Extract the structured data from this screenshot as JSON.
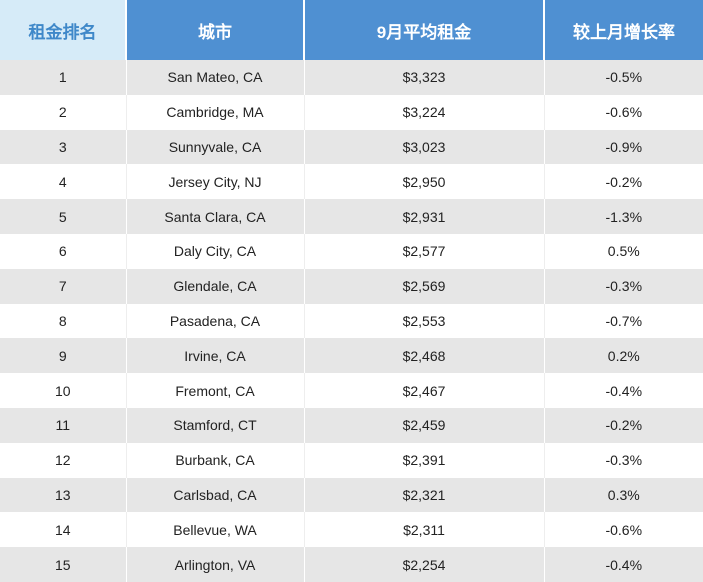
{
  "table": {
    "headers": [
      "租金排名",
      "城市",
      "9月平均租金",
      "较上月增长率"
    ],
    "rows": [
      [
        "1",
        "San Mateo, CA",
        "$3,323",
        "-0.5%"
      ],
      [
        "2",
        "Cambridge, MA",
        "$3,224",
        "-0.6%"
      ],
      [
        "3",
        "Sunnyvale, CA",
        "$3,023",
        "-0.9%"
      ],
      [
        "4",
        "Jersey City, NJ",
        "$2,950",
        "-0.2%"
      ],
      [
        "5",
        "Santa Clara, CA",
        "$2,931",
        "-1.3%"
      ],
      [
        "6",
        "Daly City, CA",
        "$2,577",
        "0.5%"
      ],
      [
        "7",
        "Glendale, CA",
        "$2,569",
        "-0.3%"
      ],
      [
        "8",
        "Pasadena, CA",
        "$2,553",
        "-0.7%"
      ],
      [
        "9",
        "Irvine, CA",
        "$2,468",
        "0.2%"
      ],
      [
        "10",
        "Fremont, CA",
        "$2,467",
        "-0.4%"
      ],
      [
        "11",
        "Stamford, CT",
        "$2,459",
        "-0.2%"
      ],
      [
        "12",
        "Burbank, CA",
        "$2,391",
        "-0.3%"
      ],
      [
        "13",
        "Carlsbad, CA",
        "$2,321",
        "0.3%"
      ],
      [
        "14",
        "Bellevue, WA",
        "$2,311",
        "-0.6%"
      ],
      [
        "15",
        "Arlington, VA",
        "$2,254",
        "-0.4%"
      ]
    ]
  },
  "colors": {
    "header_bg": "#4f90d2",
    "header_first_bg": "#d6ebf8",
    "header_first_text": "#3f88c9",
    "row_stripe": "#e6e6e6"
  }
}
